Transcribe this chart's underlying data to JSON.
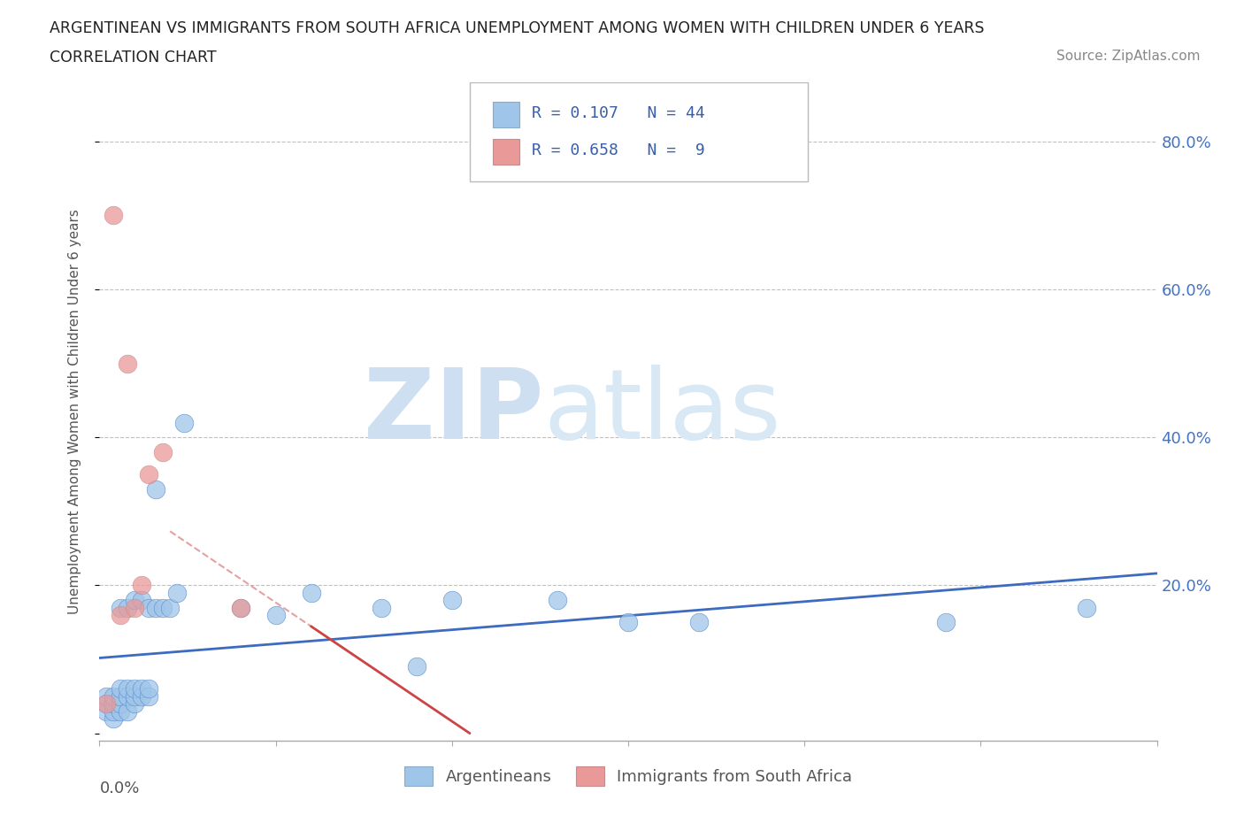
{
  "title_line1": "ARGENTINEAN VS IMMIGRANTS FROM SOUTH AFRICA UNEMPLOYMENT AMONG WOMEN WITH CHILDREN UNDER 6 YEARS",
  "title_line2": "CORRELATION CHART",
  "source": "Source: ZipAtlas.com",
  "xlim": [
    0.0,
    0.15
  ],
  "ylim": [
    -0.01,
    0.88
  ],
  "yticks": [
    0.0,
    0.2,
    0.4,
    0.6,
    0.8
  ],
  "ylabel_labels": [
    "",
    "20.0%",
    "40.0%",
    "60.0%",
    "80.0%"
  ],
  "legend_label_blue": "Argentineans",
  "legend_label_pink": "Immigrants from South Africa",
  "blue_color": "#9fc5e8",
  "pink_color": "#ea9999",
  "trendline_blue_color": "#3d6bbf",
  "trendline_pink_color": "#cc4444",
  "watermark_zip": "ZIP",
  "watermark_atlas": "atlas",
  "blue_r": "R = 0.107",
  "blue_n": "N = 44",
  "pink_r": "R = 0.658",
  "pink_n": "N =  9",
  "blue_dots_x": [
    0.001,
    0.001,
    0.001,
    0.001,
    0.002,
    0.002,
    0.002,
    0.002,
    0.003,
    0.003,
    0.003,
    0.003,
    0.003,
    0.004,
    0.004,
    0.004,
    0.004,
    0.005,
    0.005,
    0.005,
    0.005,
    0.006,
    0.006,
    0.007,
    0.007,
    0.007,
    0.008,
    0.008,
    0.009,
    0.01,
    0.011,
    0.012,
    0.013,
    0.02,
    0.025,
    0.03,
    0.04,
    0.045,
    0.055,
    0.065,
    0.075,
    0.085,
    0.12,
    0.14
  ],
  "blue_dots_y": [
    0.03,
    0.04,
    0.05,
    0.06,
    0.03,
    0.04,
    0.05,
    0.06,
    0.03,
    0.04,
    0.05,
    0.06,
    0.07,
    0.03,
    0.04,
    0.05,
    0.07,
    0.04,
    0.05,
    0.06,
    0.17,
    0.17,
    0.18,
    0.15,
    0.17,
    0.18,
    0.17,
    0.33,
    0.17,
    0.19,
    0.17,
    0.42,
    0.18,
    0.17,
    0.16,
    0.19,
    0.17,
    0.15,
    0.09,
    0.18,
    0.18,
    0.15,
    0.15,
    0.17
  ],
  "pink_dots_x": [
    0.001,
    0.002,
    0.003,
    0.004,
    0.005,
    0.007,
    0.009,
    0.02,
    0.04
  ],
  "pink_dots_y": [
    0.05,
    0.7,
    0.18,
    0.5,
    0.16,
    0.2,
    0.38,
    0.17,
    0.17
  ]
}
